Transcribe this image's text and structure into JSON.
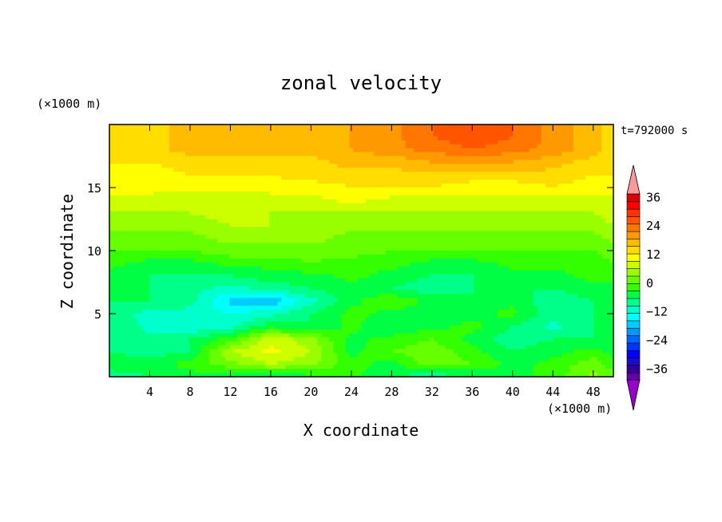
{
  "chart_data": {
    "type": "heatmap",
    "title": "zonal velocity",
    "xlabel": "X coordinate",
    "ylabel": "Z coordinate",
    "x_unit": "(×1000 m)",
    "y_unit": "(×1000 m)",
    "time_label": "t=792000 s",
    "xlim": [
      0,
      50
    ],
    "ylim": [
      0,
      20
    ],
    "x_ticks": [
      4,
      8,
      12,
      16,
      20,
      24,
      28,
      32,
      36,
      40,
      44,
      48
    ],
    "y_ticks": [
      5,
      10,
      15
    ],
    "colorbar": {
      "levels": [
        -42,
        -39,
        -36,
        -33,
        -30,
        -27,
        -24,
        -21,
        -18,
        -15,
        -12,
        -9,
        -6,
        -3,
        0,
        3,
        6,
        9,
        12,
        15,
        18,
        21,
        24,
        27,
        30,
        33,
        36,
        39,
        42
      ],
      "tick_labels": [
        "36",
        "24",
        "12",
        "0",
        "−12",
        "−24",
        "−36"
      ],
      "tick_values": [
        36,
        24,
        12,
        0,
        -12,
        -24,
        -36
      ],
      "colors": [
        "#9900cc",
        "#6600aa",
        "#330099",
        "#1a0ad0",
        "#0000ff",
        "#0033ff",
        "#0066ff",
        "#0099ff",
        "#00ccff",
        "#00ffff",
        "#00ffcc",
        "#00ff88",
        "#00ff44",
        "#33ff00",
        "#66ff00",
        "#99ff00",
        "#ccff00",
        "#ffff00",
        "#ffdd00",
        "#ffbb00",
        "#ff9900",
        "#ff7700",
        "#ff5500",
        "#ff3300",
        "#ff0000",
        "#dd0000",
        "#ff9999"
      ]
    },
    "grid_x": [
      0,
      4,
      8,
      12,
      16,
      20,
      24,
      28,
      32,
      36,
      40,
      44,
      48,
      50
    ],
    "grid_z": [
      0,
      1,
      2,
      3,
      4,
      5,
      6,
      7,
      8,
      9,
      10,
      11,
      12,
      13,
      14,
      15,
      16,
      17,
      18,
      19,
      20
    ],
    "values": [
      [
        -8,
        -6,
        -4,
        -6,
        -6,
        -4,
        -2,
        -6,
        -8,
        -6,
        -4,
        -2,
        4,
        2
      ],
      [
        -4,
        -4,
        -2,
        2,
        6,
        4,
        -2,
        -4,
        2,
        0,
        -4,
        -2,
        2,
        -2
      ],
      [
        -6,
        -8,
        -6,
        6,
        10,
        6,
        -4,
        0,
        2,
        -2,
        -6,
        -4,
        -2,
        -4
      ],
      [
        -6,
        -8,
        -6,
        -2,
        8,
        4,
        -4,
        -2,
        0,
        -4,
        -8,
        -6,
        -6,
        -6
      ],
      [
        -6,
        -10,
        -12,
        -10,
        -4,
        -6,
        -2,
        -6,
        -4,
        -2,
        -6,
        -10,
        -6,
        -6
      ],
      [
        -8,
        -10,
        -10,
        -12,
        -10,
        -6,
        -2,
        -4,
        -6,
        -4,
        -2,
        -8,
        -6,
        -6
      ],
      [
        -6,
        -6,
        -8,
        -16,
        -18,
        -10,
        -4,
        0,
        -4,
        -6,
        -4,
        -8,
        -6,
        -4
      ],
      [
        -6,
        -6,
        -8,
        -10,
        -8,
        -6,
        -4,
        -6,
        -8,
        -6,
        -6,
        -6,
        -4,
        -4
      ],
      [
        -4,
        -6,
        -6,
        -6,
        -4,
        -4,
        -2,
        -4,
        -6,
        -6,
        -4,
        -4,
        -2,
        -2
      ],
      [
        -2,
        -4,
        -4,
        -2,
        -2,
        0,
        -2,
        -2,
        -4,
        -4,
        -2,
        -2,
        -2,
        0
      ],
      [
        0,
        0,
        0,
        2,
        2,
        2,
        2,
        0,
        0,
        0,
        0,
        0,
        0,
        2
      ],
      [
        2,
        2,
        2,
        4,
        4,
        4,
        2,
        2,
        2,
        2,
        2,
        2,
        2,
        4
      ],
      [
        4,
        4,
        4,
        6,
        6,
        4,
        4,
        4,
        4,
        4,
        4,
        4,
        4,
        6
      ],
      [
        6,
        6,
        6,
        8,
        6,
        6,
        6,
        6,
        6,
        6,
        6,
        6,
        6,
        8
      ],
      [
        8,
        8,
        6,
        6,
        8,
        8,
        10,
        8,
        8,
        8,
        8,
        8,
        8,
        8
      ],
      [
        10,
        10,
        10,
        10,
        10,
        10,
        12,
        12,
        12,
        10,
        10,
        12,
        10,
        10
      ],
      [
        12,
        10,
        12,
        12,
        12,
        14,
        14,
        14,
        14,
        14,
        14,
        14,
        12,
        12
      ],
      [
        12,
        12,
        14,
        14,
        14,
        14,
        16,
        16,
        18,
        18,
        18,
        16,
        14,
        14
      ],
      [
        14,
        14,
        16,
        16,
        16,
        16,
        18,
        20,
        22,
        24,
        22,
        20,
        16,
        14
      ],
      [
        14,
        14,
        16,
        16,
        16,
        16,
        18,
        20,
        24,
        26,
        24,
        20,
        16,
        14
      ],
      [
        14,
        14,
        16,
        16,
        16,
        16,
        18,
        20,
        24,
        26,
        24,
        20,
        16,
        14
      ]
    ]
  }
}
